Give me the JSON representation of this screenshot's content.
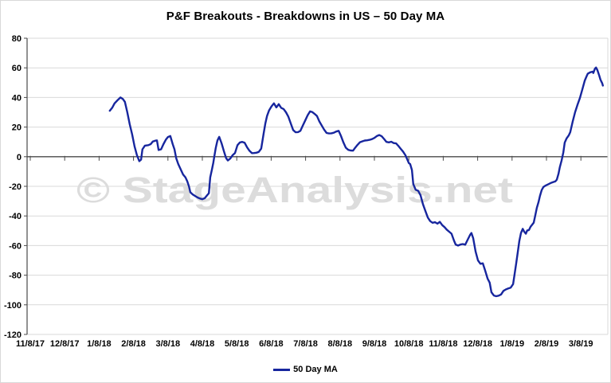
{
  "title": "P&F Breakouts - Breakdowns in US – 50 Day MA",
  "watermark": "© StageAnalysis.net",
  "legend": {
    "label": "50 Day MA"
  },
  "colors": {
    "series": "#17269e",
    "gridline": "#d9d9d9",
    "axis": "#4a4a4a",
    "watermark": "#dcdcdc",
    "label": "#000000",
    "background": "#ffffff"
  },
  "chart_data": {
    "type": "line",
    "title": "P&F Breakouts - Breakdowns in US – 50 Day MA",
    "xlabel": "",
    "ylabel": "",
    "grid": "horizontal",
    "legend_position": "bottom-center",
    "ylim": [
      -120,
      80
    ],
    "y_ticks": [
      80,
      60,
      40,
      20,
      0,
      -20,
      -40,
      -60,
      -80,
      -100,
      -120
    ],
    "x_tick_labels": [
      "11/8/17",
      "12/8/17",
      "1/8/18",
      "2/8/18",
      "3/8/18",
      "4/8/18",
      "5/8/18",
      "6/8/18",
      "7/8/18",
      "8/8/18",
      "9/8/18",
      "10/8/18",
      "11/8/18",
      "12/8/18",
      "1/8/19",
      "2/8/19",
      "3/8/19"
    ],
    "x_axis_note": "x positions are fractional months measured from the 11/8/17 tick (1.0 = one month)",
    "series": [
      {
        "name": "50 Day MA",
        "points": [
          [
            2.31,
            31
          ],
          [
            2.38,
            33
          ],
          [
            2.45,
            36
          ],
          [
            2.55,
            38.5
          ],
          [
            2.62,
            40
          ],
          [
            2.69,
            39
          ],
          [
            2.75,
            37
          ],
          [
            2.82,
            30
          ],
          [
            2.89,
            22
          ],
          [
            2.96,
            15
          ],
          [
            3.03,
            7
          ],
          [
            3.1,
            1
          ],
          [
            3.17,
            -3
          ],
          [
            3.22,
            -2
          ],
          [
            3.26,
            5
          ],
          [
            3.33,
            7.5
          ],
          [
            3.43,
            7.8
          ],
          [
            3.5,
            8.5
          ],
          [
            3.56,
            10.2
          ],
          [
            3.63,
            10.8
          ],
          [
            3.68,
            11
          ],
          [
            3.73,
            4.5
          ],
          [
            3.8,
            5
          ],
          [
            3.87,
            8.5
          ],
          [
            3.94,
            11.5
          ],
          [
            4.0,
            13.3
          ],
          [
            4.07,
            14
          ],
          [
            4.14,
            8.5
          ],
          [
            4.19,
            5
          ],
          [
            4.24,
            -1
          ],
          [
            4.3,
            -5
          ],
          [
            4.37,
            -8.5
          ],
          [
            4.44,
            -12
          ],
          [
            4.51,
            -14
          ],
          [
            4.56,
            -16.5
          ],
          [
            4.61,
            -20
          ],
          [
            4.65,
            -24
          ],
          [
            4.72,
            -25.5
          ],
          [
            4.79,
            -26.5
          ],
          [
            4.86,
            -27.5
          ],
          [
            4.93,
            -28.2
          ],
          [
            5.0,
            -28.7
          ],
          [
            5.07,
            -28
          ],
          [
            5.14,
            -26
          ],
          [
            5.19,
            -24.6
          ],
          [
            5.21,
            -19
          ],
          [
            5.23,
            -14
          ],
          [
            5.28,
            -8.5
          ],
          [
            5.32,
            -4
          ],
          [
            5.35,
            0.4
          ],
          [
            5.39,
            5.8
          ],
          [
            5.42,
            9
          ],
          [
            5.44,
            11
          ],
          [
            5.47,
            12.5
          ],
          [
            5.49,
            13.4
          ],
          [
            5.56,
            9
          ],
          [
            5.63,
            3.5
          ],
          [
            5.69,
            -0.9
          ],
          [
            5.74,
            -2.5
          ],
          [
            5.81,
            -1.3
          ],
          [
            5.88,
            1
          ],
          [
            5.95,
            2.5
          ],
          [
            6.02,
            7.8
          ],
          [
            6.09,
            9.6
          ],
          [
            6.16,
            10
          ],
          [
            6.23,
            9.4
          ],
          [
            6.3,
            6.3
          ],
          [
            6.37,
            4
          ],
          [
            6.44,
            2.4
          ],
          [
            6.5,
            2.5
          ],
          [
            6.57,
            2.7
          ],
          [
            6.64,
            3.2
          ],
          [
            6.71,
            5.5
          ],
          [
            6.78,
            15.5
          ],
          [
            6.83,
            22.5
          ],
          [
            6.88,
            27.5
          ],
          [
            6.94,
            31.3
          ],
          [
            7.01,
            34
          ],
          [
            7.08,
            36
          ],
          [
            7.15,
            33.3
          ],
          [
            7.22,
            35.5
          ],
          [
            7.29,
            33
          ],
          [
            7.36,
            32.2
          ],
          [
            7.43,
            30
          ],
          [
            7.5,
            27
          ],
          [
            7.57,
            22.5
          ],
          [
            7.64,
            18
          ],
          [
            7.71,
            16.5
          ],
          [
            7.78,
            16.6
          ],
          [
            7.85,
            17.5
          ],
          [
            7.92,
            21
          ],
          [
            7.99,
            24.5
          ],
          [
            8.06,
            28
          ],
          [
            8.13,
            30.6
          ],
          [
            8.19,
            30.2
          ],
          [
            8.26,
            29
          ],
          [
            8.33,
            27.5
          ],
          [
            8.4,
            23.8
          ],
          [
            8.47,
            21
          ],
          [
            8.54,
            18.3
          ],
          [
            8.61,
            16
          ],
          [
            8.68,
            15.7
          ],
          [
            8.75,
            15.8
          ],
          [
            8.82,
            16.2
          ],
          [
            8.89,
            17
          ],
          [
            8.96,
            17.5
          ],
          [
            9.03,
            13.9
          ],
          [
            9.1,
            9.6
          ],
          [
            9.17,
            6.1
          ],
          [
            9.24,
            4.6
          ],
          [
            9.31,
            4.2
          ],
          [
            9.38,
            4.1
          ],
          [
            9.44,
            6
          ],
          [
            9.51,
            8
          ],
          [
            9.58,
            9.8
          ],
          [
            9.65,
            10.4
          ],
          [
            9.72,
            10.9
          ],
          [
            9.79,
            11.1
          ],
          [
            9.86,
            11.4
          ],
          [
            9.93,
            11.9
          ],
          [
            10.0,
            12.7
          ],
          [
            10.07,
            13.9
          ],
          [
            10.14,
            14.6
          ],
          [
            10.21,
            13.8
          ],
          [
            10.28,
            12
          ],
          [
            10.35,
            10
          ],
          [
            10.42,
            9.7
          ],
          [
            10.49,
            10.1
          ],
          [
            10.56,
            9.2
          ],
          [
            10.63,
            9
          ],
          [
            10.69,
            7.5
          ],
          [
            10.76,
            5.5
          ],
          [
            10.83,
            3.5
          ],
          [
            10.9,
            1
          ],
          [
            10.95,
            -1.5
          ],
          [
            11.0,
            -4.3
          ],
          [
            11.04,
            -5
          ],
          [
            11.09,
            -9
          ],
          [
            11.13,
            -18.5
          ],
          [
            11.2,
            -22.3
          ],
          [
            11.27,
            -23
          ],
          [
            11.34,
            -26
          ],
          [
            11.41,
            -32
          ],
          [
            11.48,
            -36.5
          ],
          [
            11.55,
            -41
          ],
          [
            11.62,
            -43.5
          ],
          [
            11.69,
            -44.6
          ],
          [
            11.76,
            -44.2
          ],
          [
            11.83,
            -45.2
          ],
          [
            11.9,
            -44
          ],
          [
            11.97,
            -46.2
          ],
          [
            12.04,
            -47.6
          ],
          [
            12.1,
            -49.2
          ],
          [
            12.17,
            -50.6
          ],
          [
            12.24,
            -52
          ],
          [
            12.31,
            -56.5
          ],
          [
            12.36,
            -59.3
          ],
          [
            12.43,
            -60
          ],
          [
            12.5,
            -59.3
          ],
          [
            12.57,
            -59
          ],
          [
            12.64,
            -59.4
          ],
          [
            12.71,
            -56
          ],
          [
            12.78,
            -52.8
          ],
          [
            12.82,
            -51.5
          ],
          [
            12.87,
            -55
          ],
          [
            12.94,
            -64
          ],
          [
            13.01,
            -70
          ],
          [
            13.08,
            -72.3
          ],
          [
            13.15,
            -72
          ],
          [
            13.22,
            -77
          ],
          [
            13.29,
            -82.3
          ],
          [
            13.35,
            -85
          ],
          [
            13.4,
            -91.5
          ],
          [
            13.47,
            -93.7
          ],
          [
            13.54,
            -94.2
          ],
          [
            13.61,
            -93.8
          ],
          [
            13.68,
            -93
          ],
          [
            13.75,
            -90.6
          ],
          [
            13.82,
            -89.6
          ],
          [
            13.89,
            -89
          ],
          [
            13.96,
            -88.4
          ],
          [
            14.03,
            -86
          ],
          [
            14.07,
            -80
          ],
          [
            14.12,
            -72
          ],
          [
            14.17,
            -64
          ],
          [
            14.21,
            -57
          ],
          [
            14.26,
            -51.5
          ],
          [
            14.31,
            -48.7
          ],
          [
            14.35,
            -50.5
          ],
          [
            14.4,
            -52
          ],
          [
            14.44,
            -49.8
          ],
          [
            14.49,
            -49.5
          ],
          [
            14.54,
            -47.2
          ],
          [
            14.58,
            -46
          ],
          [
            14.63,
            -44.5
          ],
          [
            14.68,
            -39
          ],
          [
            14.72,
            -34.5
          ],
          [
            14.77,
            -30.5
          ],
          [
            14.81,
            -26.5
          ],
          [
            14.86,
            -22.5
          ],
          [
            14.91,
            -20.5
          ],
          [
            14.98,
            -19.4
          ],
          [
            15.05,
            -18.6
          ],
          [
            15.12,
            -17.8
          ],
          [
            15.19,
            -17.2
          ],
          [
            15.26,
            -16.6
          ],
          [
            15.3,
            -15.5
          ],
          [
            15.35,
            -11.5
          ],
          [
            15.39,
            -7
          ],
          [
            15.44,
            -2.5
          ],
          [
            15.49,
            3
          ],
          [
            15.53,
            9.5
          ],
          [
            15.58,
            12.2
          ],
          [
            15.65,
            14.5
          ],
          [
            15.69,
            16.5
          ],
          [
            15.76,
            23.5
          ],
          [
            15.83,
            30
          ],
          [
            15.9,
            35
          ],
          [
            15.97,
            39.5
          ],
          [
            16.04,
            45.2
          ],
          [
            16.11,
            51.3
          ],
          [
            16.16,
            54
          ],
          [
            16.2,
            56
          ],
          [
            16.27,
            57
          ],
          [
            16.34,
            57.4
          ],
          [
            16.36,
            56.5
          ],
          [
            16.41,
            59.5
          ],
          [
            16.44,
            60.2
          ],
          [
            16.48,
            58.5
          ],
          [
            16.53,
            55
          ],
          [
            16.57,
            52
          ],
          [
            16.62,
            49.5
          ],
          [
            16.64,
            48
          ]
        ]
      }
    ]
  }
}
